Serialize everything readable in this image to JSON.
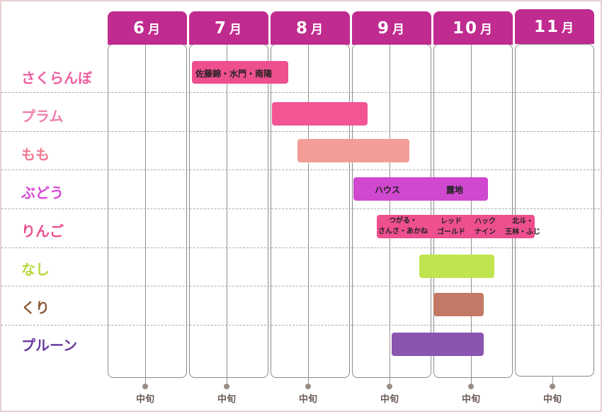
{
  "months": [
    {
      "num": "6",
      "suffix": "月"
    },
    {
      "num": "7",
      "suffix": "月"
    },
    {
      "num": "8",
      "suffix": "月"
    },
    {
      "num": "9",
      "suffix": "月"
    },
    {
      "num": "10",
      "suffix": "月"
    },
    {
      "num": "11",
      "suffix": "月"
    }
  ],
  "mid_label": "中旬",
  "rows": [
    {
      "label": "さくらんぼ",
      "color": "#ee5f9f"
    },
    {
      "label": "プラム",
      "color": "#ee7fae"
    },
    {
      "label": "もも",
      "color": "#f07a8e"
    },
    {
      "label": "ぶどう",
      "color": "#d648d6"
    },
    {
      "label": "りんご",
      "color": "#ee4f8f"
    },
    {
      "label": "なし",
      "color": "#b6d83a"
    },
    {
      "label": "くり",
      "color": "#8a5a3a"
    },
    {
      "label": "プルーン",
      "color": "#6a3aa0"
    }
  ],
  "bar_texts": {
    "cherry": "佐藤錦・水門・南陽",
    "grape_house": "ハウス",
    "grape_outdoor": "露地",
    "apple_tsugaru_1": "つがる・",
    "apple_tsugaru_2": "さんさ・あかね",
    "apple_red_1": "レッド",
    "apple_red_2": "ゴールド",
    "apple_hack_1": "ハック",
    "apple_hack_2": "ナイン",
    "apple_hokuto_1": "北斗・",
    "apple_hokuto_2": "王林・ふじ"
  },
  "colors": {
    "header": "#bf2b8f",
    "cherry_bar": "#ee4f8f",
    "plum_bar": "#f25494",
    "peach_bar": "#f29e96",
    "grape_bar": "#cf48cf",
    "apple_bar": "#ee4f8f",
    "pear_bar": "#c0e44e",
    "chestnut_bar": "#c27a66",
    "prune_bar": "#8a55b0"
  }
}
